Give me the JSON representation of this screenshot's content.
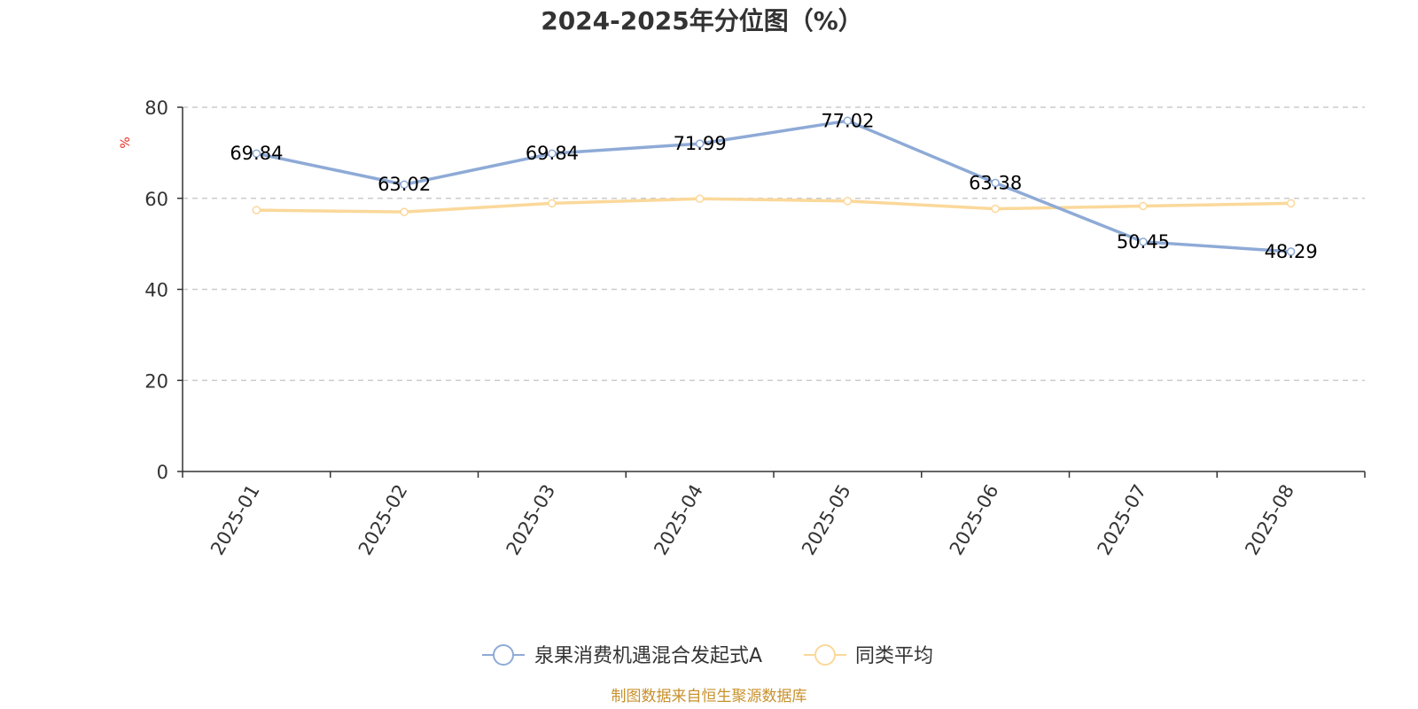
{
  "chart_data": {
    "type": "line",
    "title": "2024-2025年分位图（%）",
    "ylabel": "%",
    "xlabel": "",
    "ylim": [
      0,
      80
    ],
    "yticks": [
      0,
      20,
      40,
      60,
      80
    ],
    "categories": [
      "2025-01",
      "2025-02",
      "2025-03",
      "2025-04",
      "2025-05",
      "2025-06",
      "2025-07",
      "2025-08"
    ],
    "series": [
      {
        "name": "泉果消费机遇混合发起式A",
        "color": "#8eaad6",
        "values": [
          69.84,
          63.02,
          69.84,
          71.99,
          77.02,
          63.38,
          50.45,
          48.29
        ],
        "labels": [
          "69.84",
          "63.02",
          "69.84",
          "71.99",
          "77.02",
          "63.38",
          "50.45",
          "48.29"
        ]
      },
      {
        "name": "同类平均",
        "color": "#fbd89a",
        "values": [
          57.4,
          57.0,
          58.9,
          59.9,
          59.4,
          57.7,
          58.3,
          58.9
        ]
      }
    ],
    "grid": true,
    "legend_position": "bottom-center"
  },
  "source_text": "制图数据来自恒生聚源数据库"
}
